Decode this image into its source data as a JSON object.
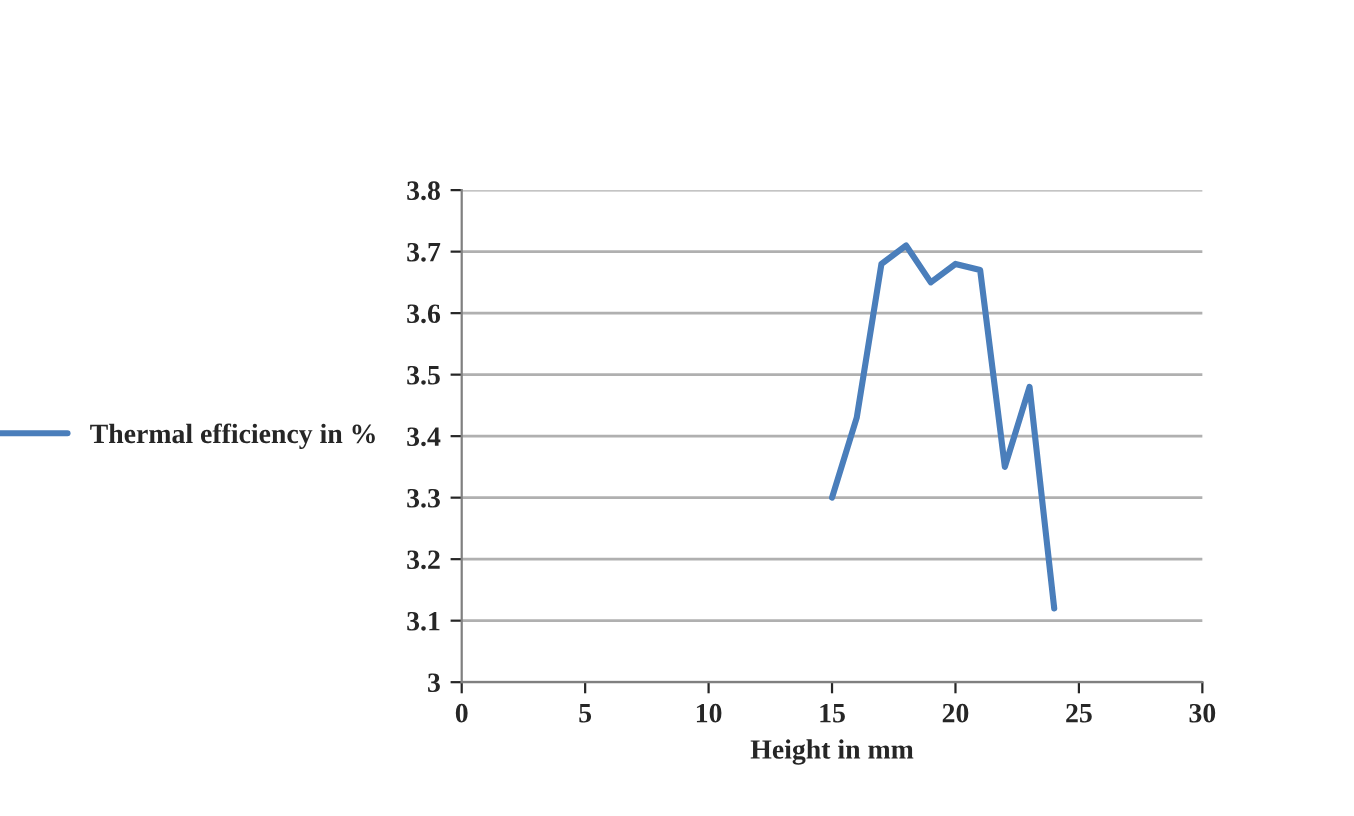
{
  "chart_data": {
    "type": "line",
    "xlabel": "Height in mm",
    "x": [
      15,
      16,
      17,
      18,
      19,
      20,
      21,
      22,
      23,
      24
    ],
    "series": [
      {
        "name": "Thermal efficiency in %",
        "color": "#4a7ebb",
        "values": [
          3.3,
          3.43,
          3.68,
          3.71,
          3.65,
          3.68,
          3.67,
          3.35,
          3.48,
          3.12
        ]
      }
    ],
    "xlim": [
      0,
      30
    ],
    "xticks": [
      0,
      5,
      10,
      15,
      20,
      25,
      30
    ],
    "ylim": [
      3,
      3.8
    ],
    "yticks": [
      3,
      3.1,
      3.2,
      3.3,
      3.4,
      3.5,
      3.6,
      3.7,
      3.8
    ],
    "grid": "y",
    "legend": "left",
    "marker": "none",
    "line_style": "solid"
  }
}
